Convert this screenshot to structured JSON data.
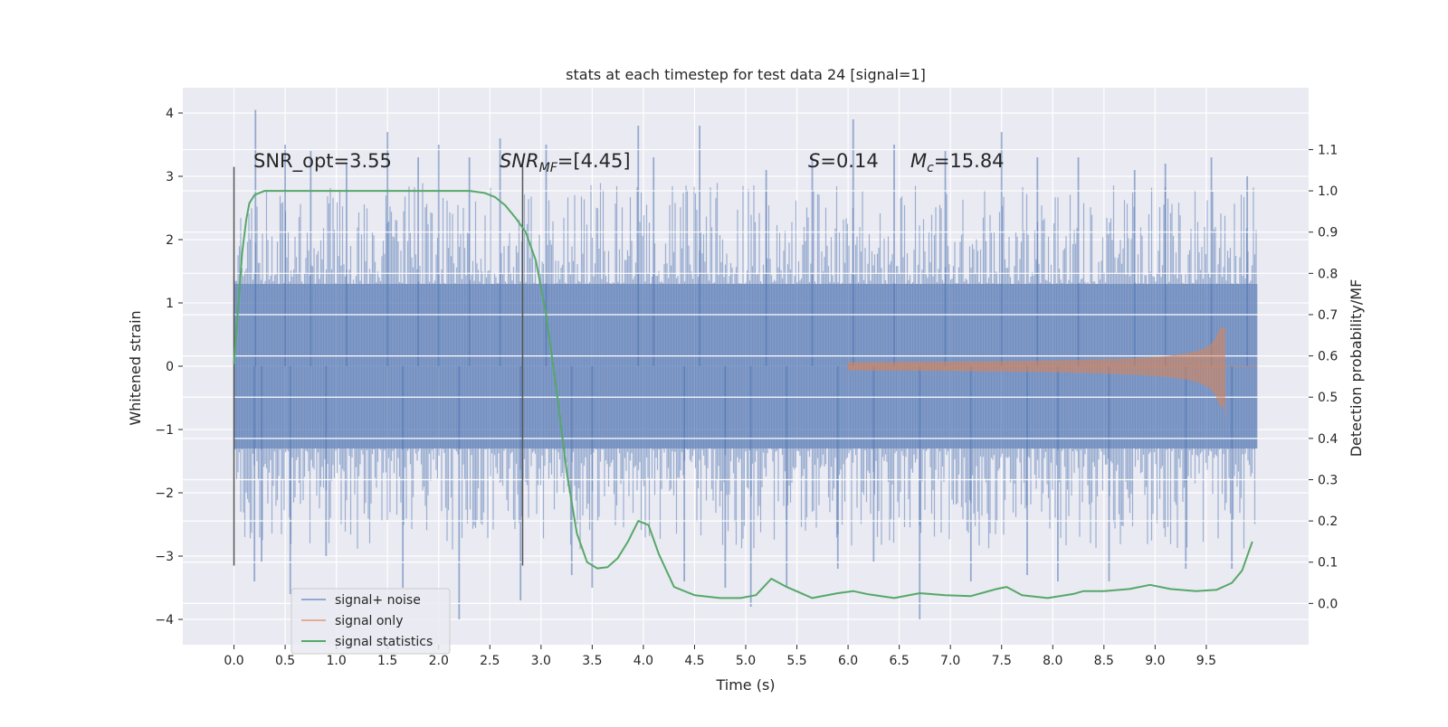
{
  "chart_data": {
    "type": "line",
    "title": "stats at each timestep for test data 24 [signal=1]",
    "xlabel": "Time (s)",
    "ylabel_left": "Whitened strain",
    "ylabel_right": "Detection probability/MF",
    "xlim": [
      -0.5,
      10.5
    ],
    "ylim_left": [
      -4.4,
      4.4
    ],
    "ylim_right": [
      -0.1,
      1.25
    ],
    "xticks": [
      "0.0",
      "0.5",
      "1.0",
      "1.5",
      "2.0",
      "2.5",
      "3.0",
      "3.5",
      "4.0",
      "4.5",
      "5.0",
      "5.5",
      "6.0",
      "6.5",
      "7.0",
      "7.5",
      "8.0",
      "8.5",
      "9.0",
      "9.5"
    ],
    "xtick_values": [
      0.0,
      0.5,
      1.0,
      1.5,
      2.0,
      2.5,
      3.0,
      3.5,
      4.0,
      4.5,
      5.0,
      5.5,
      6.0,
      6.5,
      7.0,
      7.5,
      8.0,
      8.5,
      9.0,
      9.5
    ],
    "yticks_left": [
      "4",
      "3",
      "2",
      "1",
      "0",
      "−1",
      "−2",
      "−3",
      "−4"
    ],
    "ytick_values_left": [
      4,
      3,
      2,
      1,
      0,
      -1,
      -2,
      -3,
      -4
    ],
    "yticks_right": [
      "1.1",
      "1.0",
      "0.9",
      "0.8",
      "0.7",
      "0.6",
      "0.5",
      "0.4",
      "0.3",
      "0.2",
      "0.1",
      "0.0"
    ],
    "ytick_values_right": [
      1.1,
      1.0,
      0.9,
      0.8,
      0.7,
      0.6,
      0.5,
      0.4,
      0.3,
      0.2,
      0.1,
      0.0
    ],
    "grid": true,
    "legend_position": "lower-left",
    "annotations": {
      "snr_opt": "SNR_opt=3.55",
      "snr_mf_main": "SNR",
      "snr_mf_sub": "MF",
      "snr_mf_value": "=[4.45]",
      "s_symbol": "S",
      "s_value": "=0.14",
      "mc_symbol": "M",
      "mc_sub": "c",
      "mc_value": "=15.84"
    },
    "vlines": [
      {
        "x": 0.0,
        "ymin": -3.15,
        "ymax": 3.15
      },
      {
        "x": 2.82,
        "ymin": -3.15,
        "ymax": 3.15
      }
    ],
    "series": [
      {
        "name": "signal+ noise",
        "color": "#4c72b0",
        "axis": "left",
        "x_range": [
          0.0,
          10.0
        ],
        "band": [
          -1.3,
          1.3
        ],
        "spikes": [
          [
            0.2,
            -3.4
          ],
          [
            0.21,
            4.05
          ],
          [
            0.27,
            -3.1
          ],
          [
            0.5,
            3.5
          ],
          [
            0.55,
            -3.6
          ],
          [
            0.75,
            3.4
          ],
          [
            0.9,
            -3.0
          ],
          [
            1.1,
            3.2
          ],
          [
            1.5,
            3.7
          ],
          [
            1.65,
            -3.5
          ],
          [
            1.8,
            3.3
          ],
          [
            2.0,
            3.5
          ],
          [
            2.2,
            -4.0
          ],
          [
            2.3,
            3.3
          ],
          [
            2.6,
            3.6
          ],
          [
            2.8,
            -3.7
          ],
          [
            3.05,
            3.5
          ],
          [
            3.3,
            -3.3
          ],
          [
            3.5,
            -3.5
          ],
          [
            3.95,
            3.8
          ],
          [
            4.1,
            3.3
          ],
          [
            4.4,
            -3.4
          ],
          [
            4.55,
            3.8
          ],
          [
            4.8,
            -3.5
          ],
          [
            5.05,
            -3.8
          ],
          [
            5.2,
            3.1
          ],
          [
            5.4,
            -3.5
          ],
          [
            5.65,
            3.3
          ],
          [
            5.9,
            -3.2
          ],
          [
            6.05,
            3.9
          ],
          [
            6.25,
            -3.1
          ],
          [
            6.45,
            3.5
          ],
          [
            6.7,
            -4.0
          ],
          [
            6.95,
            3.4
          ],
          [
            7.2,
            -3.4
          ],
          [
            7.5,
            3.7
          ],
          [
            7.75,
            -3.3
          ],
          [
            7.85,
            3.3
          ],
          [
            8.05,
            -3.4
          ],
          [
            8.25,
            3.3
          ],
          [
            8.55,
            -3.4
          ],
          [
            8.8,
            3.1
          ],
          [
            9.1,
            3.2
          ],
          [
            9.3,
            -3.2
          ],
          [
            9.55,
            3.3
          ],
          [
            9.75,
            -3.2
          ],
          [
            9.9,
            3.0
          ]
        ]
      },
      {
        "name": "signal only",
        "color": "#dd8452",
        "axis": "left",
        "chirp_start": 6.0,
        "peak_time": 9.68,
        "peak_amplitude": 0.6,
        "trough": -0.8
      },
      {
        "name": "signal statistics",
        "color": "#55a868",
        "axis": "right",
        "x": [
          0.0,
          0.05,
          0.08,
          0.12,
          0.15,
          0.2,
          0.3,
          0.5,
          1.0,
          1.5,
          2.0,
          2.3,
          2.45,
          2.55,
          2.65,
          2.75,
          2.85,
          2.95,
          3.05,
          3.15,
          3.25,
          3.35,
          3.45,
          3.55,
          3.65,
          3.75,
          3.85,
          3.95,
          4.05,
          4.15,
          4.3,
          4.5,
          4.75,
          4.95,
          5.1,
          5.25,
          5.4,
          5.65,
          5.9,
          6.05,
          6.2,
          6.45,
          6.7,
          6.95,
          7.2,
          7.45,
          7.55,
          7.7,
          7.95,
          8.2,
          8.3,
          8.5,
          8.75,
          8.95,
          9.15,
          9.4,
          9.6,
          9.75,
          9.85,
          9.95
        ],
        "y": [
          0.58,
          0.75,
          0.85,
          0.93,
          0.97,
          0.99,
          1.0,
          1.0,
          1.0,
          1.0,
          1.0,
          1.0,
          0.995,
          0.985,
          0.965,
          0.935,
          0.9,
          0.83,
          0.7,
          0.52,
          0.32,
          0.17,
          0.1,
          0.085,
          0.088,
          0.11,
          0.15,
          0.2,
          0.19,
          0.12,
          0.04,
          0.02,
          0.013,
          0.013,
          0.02,
          0.06,
          0.04,
          0.013,
          0.025,
          0.03,
          0.022,
          0.013,
          0.025,
          0.02,
          0.018,
          0.035,
          0.04,
          0.02,
          0.013,
          0.023,
          0.03,
          0.03,
          0.035,
          0.045,
          0.035,
          0.03,
          0.033,
          0.05,
          0.08,
          0.15
        ]
      }
    ]
  }
}
